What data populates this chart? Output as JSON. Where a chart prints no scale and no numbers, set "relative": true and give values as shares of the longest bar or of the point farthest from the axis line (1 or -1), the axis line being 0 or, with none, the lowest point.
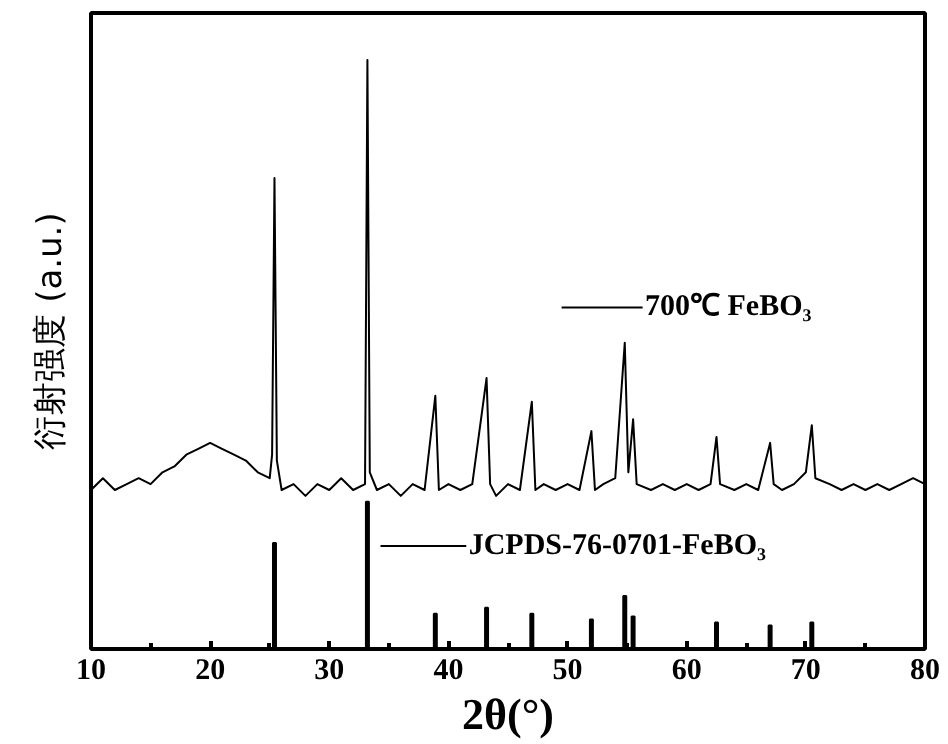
{
  "chart_data": {
    "type": "line",
    "relative": true,
    "xlabel": "2θ(°)",
    "ylabel": "衍射强度 (a.u.)",
    "xlim": [
      10,
      80
    ],
    "xticks": [
      10,
      20,
      30,
      40,
      50,
      60,
      70,
      80
    ],
    "tick_labels": "x",
    "grid": false,
    "legend": "right",
    "series": [
      {
        "name": "700℃ FeBO₃",
        "color": "#000000",
        "x": [
          10,
          11,
          12,
          13,
          14,
          15,
          16,
          17,
          18,
          19,
          20,
          21,
          22,
          23,
          24,
          25,
          25.2,
          25.4,
          25.6,
          26,
          27,
          28,
          29,
          30,
          31,
          32,
          33,
          33.2,
          33.4,
          34,
          35,
          36,
          37,
          38,
          38.9,
          39.2,
          40,
          41,
          42,
          43.2,
          43.5,
          44,
          45,
          46,
          47,
          47.3,
          48,
          49,
          50,
          51,
          52,
          52.3,
          53,
          54,
          54.8,
          55.1,
          55.5,
          55.8,
          57,
          58,
          59,
          60,
          61,
          62,
          62.5,
          62.8,
          64,
          65,
          66,
          67,
          67.3,
          68,
          69,
          70,
          70.5,
          70.8,
          72,
          73,
          74,
          75,
          76,
          77,
          78,
          79,
          80
        ],
        "values": [
          0.27,
          0.29,
          0.27,
          0.28,
          0.29,
          0.28,
          0.3,
          0.31,
          0.33,
          0.34,
          0.35,
          0.34,
          0.33,
          0.32,
          0.3,
          0.29,
          0.33,
          0.8,
          0.32,
          0.27,
          0.28,
          0.26,
          0.28,
          0.27,
          0.29,
          0.27,
          0.28,
          1.0,
          0.3,
          0.27,
          0.28,
          0.26,
          0.28,
          0.27,
          0.43,
          0.27,
          0.28,
          0.27,
          0.28,
          0.46,
          0.28,
          0.26,
          0.28,
          0.27,
          0.42,
          0.27,
          0.28,
          0.27,
          0.28,
          0.27,
          0.37,
          0.27,
          0.28,
          0.29,
          0.52,
          0.3,
          0.39,
          0.28,
          0.27,
          0.28,
          0.27,
          0.28,
          0.27,
          0.28,
          0.36,
          0.28,
          0.27,
          0.28,
          0.27,
          0.35,
          0.28,
          0.27,
          0.28,
          0.3,
          0.38,
          0.29,
          0.28,
          0.27,
          0.28,
          0.27,
          0.28,
          0.27,
          0.28,
          0.29,
          0.28
        ]
      },
      {
        "name": "JCPDS-76-0701-FeBO₃",
        "color": "#000000",
        "type": "bar",
        "x": [
          25.4,
          33.2,
          38.9,
          43.2,
          47,
          52,
          54.8,
          55.5,
          62.5,
          67,
          70.5
        ],
        "values": [
          0.18,
          0.25,
          0.06,
          0.07,
          0.06,
          0.05,
          0.09,
          0.055,
          0.045,
          0.04,
          0.045
        ]
      }
    ]
  }
}
